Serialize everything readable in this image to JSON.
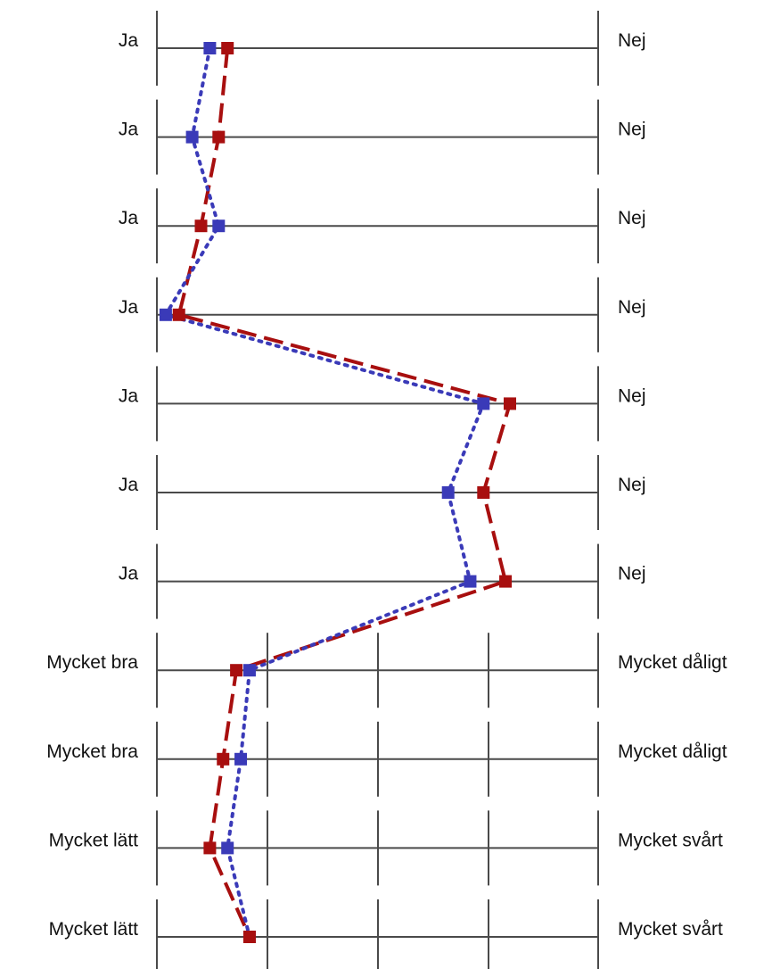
{
  "chart_data": {
    "type": "line",
    "orientation": "horizontal-profile",
    "title": "",
    "xlabel": "",
    "ylabel": "",
    "xlim": [
      0,
      1
    ],
    "grid": true,
    "legend": "none",
    "rows": [
      {
        "left": "Ja",
        "right": "Nej",
        "scale": "binary"
      },
      {
        "left": "Ja",
        "right": "Nej",
        "scale": "binary"
      },
      {
        "left": "Ja",
        "right": "Nej",
        "scale": "binary"
      },
      {
        "left": "Ja",
        "right": "Nej",
        "scale": "binary"
      },
      {
        "left": "Ja",
        "right": "Nej",
        "scale": "binary"
      },
      {
        "left": "Ja",
        "right": "Nej",
        "scale": "binary"
      },
      {
        "left": "Ja",
        "right": "Nej",
        "scale": "binary"
      },
      {
        "left": "Mycket bra",
        "right": "Mycket dåligt",
        "scale": "five-point"
      },
      {
        "left": "Mycket bra",
        "right": "Mycket dåligt",
        "scale": "five-point"
      },
      {
        "left": "Mycket lätt",
        "right": "Mycket svårt",
        "scale": "five-point"
      },
      {
        "left": "Mycket lätt",
        "right": "Mycket svårt",
        "scale": "five-point"
      }
    ],
    "series": [
      {
        "color": "#a80f0f",
        "line_style": "dashed",
        "values": [
          0.16,
          0.14,
          0.1,
          0.05,
          0.8,
          0.74,
          0.79,
          0.18,
          0.15,
          0.12,
          0.21
        ]
      },
      {
        "color": "#3a3ab8",
        "line_style": "dotted",
        "values": [
          0.12,
          0.08,
          0.14,
          0.02,
          0.74,
          0.66,
          0.71,
          0.21,
          0.19,
          0.16,
          0.21
        ]
      }
    ]
  }
}
